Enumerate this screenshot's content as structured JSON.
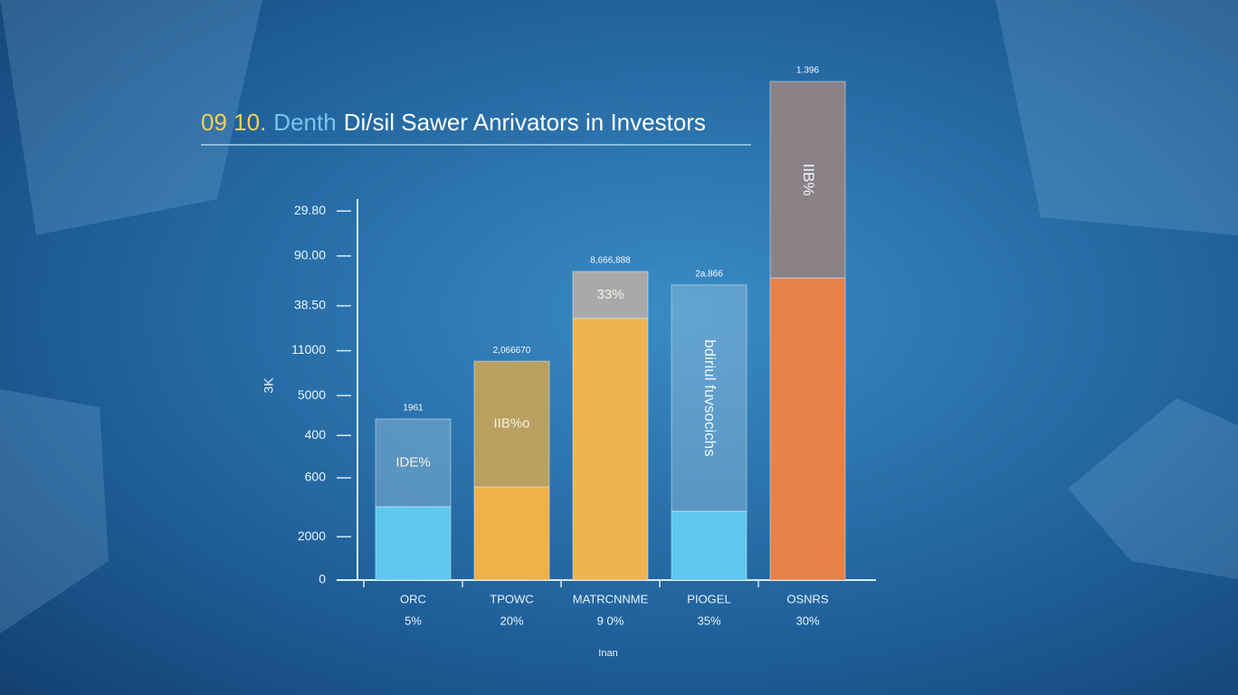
{
  "chart_data": {
    "type": "stacked-bar",
    "title_parts": [
      {
        "text": "09 10.",
        "color": "#f2cf5a"
      },
      {
        "text": "Denth",
        "color": "#7cc4ea"
      },
      {
        "text": "Di/sil Sawer Anrivators in Investors",
        "color": "#ffffff"
      }
    ],
    "categories": [
      "ORC",
      "TPOWC",
      "MATRCNNME",
      "PIOGEL",
      "OSNRS"
    ],
    "category_sublabels": [
      "5%",
      "20%",
      "9 0%",
      "35%",
      "30%"
    ],
    "x_label": "Inan",
    "y_label": "3K",
    "bar_labels": [
      "1961",
      "2,066670",
      "8,666,888",
      "2a.866",
      "1.396"
    ],
    "inner_labels": [
      "IDE%",
      "IIB%o",
      "33%",
      "bdiriul fuvsocichs",
      "IIB%"
    ],
    "series": [
      {
        "colors": [
          "#5ec8ee",
          "#f0b04a",
          "#efb450",
          "#5ec8ee",
          "#e8804a"
        ],
        "values": [
          14.7,
          18.7,
          52.5,
          13.8,
          60.6
        ]
      },
      {
        "colors": [
          "rgba(150,195,225,0.45)",
          "#b9a060",
          "#a9a9ab",
          "rgba(150,195,225,0.45)",
          "#8a8287"
        ],
        "values": [
          17.6,
          25.2,
          9.4,
          45.4,
          39.4
        ]
      }
    ],
    "ylim": [
      0,
      100
    ],
    "yticks": [
      {
        "value": 74,
        "label": "29.80"
      },
      {
        "value": 65,
        "label": "90.00"
      },
      {
        "value": 55,
        "label": "38.50"
      },
      {
        "value": 46,
        "label": "11000"
      },
      {
        "value": 37,
        "label": "5000"
      },
      {
        "value": 29,
        "label": "400"
      },
      {
        "value": 20.5,
        "label": "600"
      },
      {
        "value": 8.7,
        "label": "2000"
      },
      0
    ]
  }
}
